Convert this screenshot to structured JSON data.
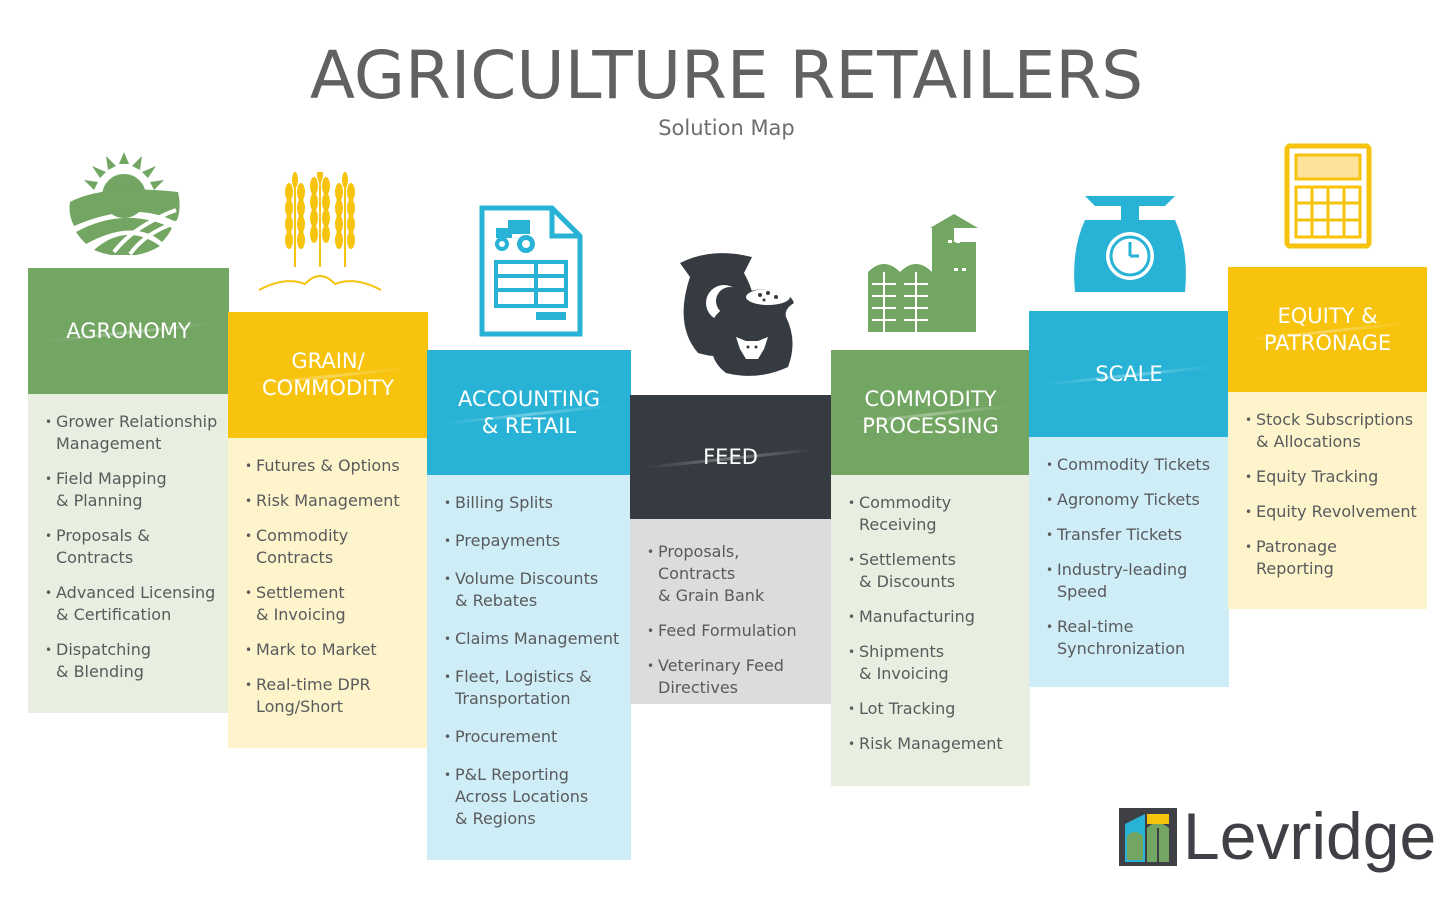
{
  "header": {
    "title": "AGRICULTURE RETAILERS",
    "subtitle": "Solution Map"
  },
  "colors": {
    "green": "#73a563",
    "green_light": "#e8efe1",
    "yellow": "#f7c30d",
    "yellow_light": "#fdf4cc",
    "blue": "#28b3d6",
    "blue_light": "#cfedf7",
    "dark": "#363b41",
    "grey_light": "#dcdcdd"
  },
  "columns": [
    {
      "id": "agronomy",
      "title": "AGRONOMY",
      "icon": "sun-field-icon",
      "items": [
        "Grower Relationship\nManagement",
        "Field Mapping\n& Planning",
        "Proposals &\nContracts",
        "Advanced Licensing\n& Certification",
        "Dispatching\n& Blending"
      ]
    },
    {
      "id": "grain",
      "title": "GRAIN/\nCOMMODITY",
      "icon": "wheat-icon",
      "items": [
        "Futures & Options",
        "Risk Management",
        "Commodity\nContracts",
        "Settlement\n& Invoicing",
        "Mark to Market",
        "Real-time DPR\nLong/Short"
      ]
    },
    {
      "id": "accounting",
      "title": "ACCOUNTING\n& RETAIL",
      "icon": "invoice-tractor-icon",
      "items": [
        "Billing Splits",
        "Prepayments",
        "Volume Discounts\n& Rebates",
        "Claims Management",
        "Fleet, Logistics &\nTransportation",
        "Procurement",
        "P&L Reporting\nAcross Locations\n& Regions"
      ]
    },
    {
      "id": "feed",
      "title": "FEED",
      "icon": "feed-bags-icon",
      "items": [
        "Proposals, Contracts\n& Grain Bank",
        "Feed Formulation",
        "Veterinary Feed\nDirectives"
      ]
    },
    {
      "id": "processing",
      "title": "COMMODITY\nPROCESSING",
      "icon": "grain-elevator-icon",
      "items": [
        "Commodity\nReceiving",
        "Settlements\n& Discounts",
        "Manufacturing",
        "Shipments\n& Invoicing",
        "Lot Tracking",
        "Risk Management"
      ]
    },
    {
      "id": "scale",
      "title": "SCALE",
      "icon": "weighing-scale-icon",
      "items": [
        "Commodity Tickets",
        "Agronomy Tickets",
        "Transfer Tickets",
        "Industry-leading\nSpeed",
        "Real-time\nSynchronization"
      ]
    },
    {
      "id": "equity",
      "title": "EQUITY &\nPATRONAGE",
      "icon": "calculator-icon",
      "items": [
        "Stock Subscriptions\n& Allocations",
        "Equity Tracking",
        "Equity Revolvement",
        "Patronage\nReporting"
      ]
    }
  ],
  "brand": {
    "name": "Levridge",
    "icon": "levridge-logo-icon"
  }
}
